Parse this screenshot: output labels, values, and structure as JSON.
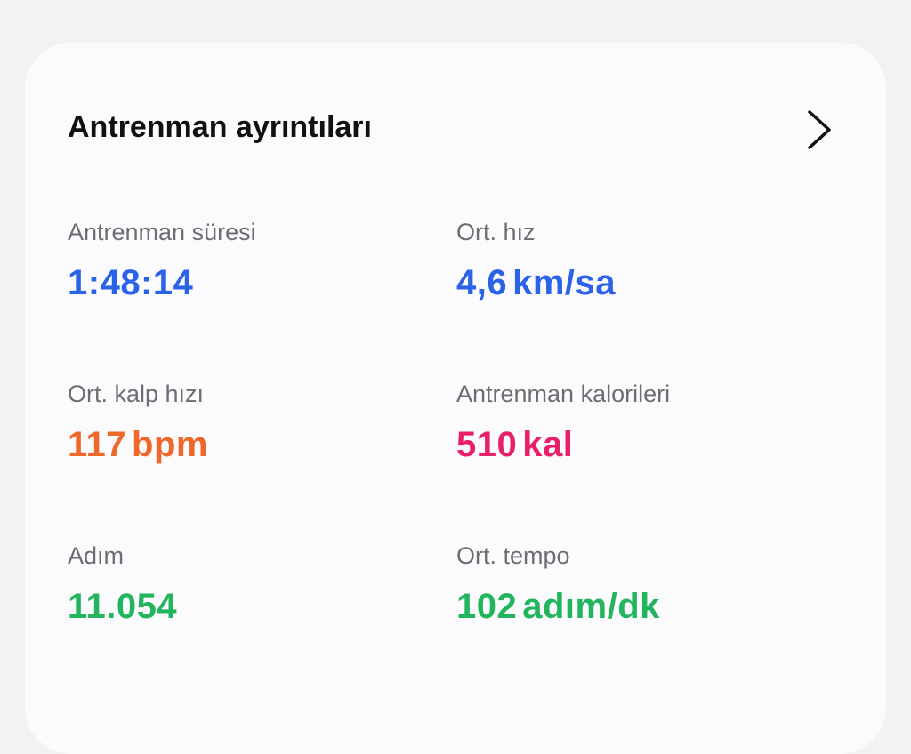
{
  "header": {
    "title": "Antrenman ayrıntıları",
    "chevron_icon": "chevron-right-icon"
  },
  "metrics": [
    {
      "label": "Antrenman süresi",
      "value": "1:48:14",
      "unit": "",
      "color": "#2a62e8"
    },
    {
      "label": "Ort. hız",
      "value": "4,6",
      "unit": "km/sa",
      "color": "#2a62e8"
    },
    {
      "label": "Ort. kalp hızı",
      "value": "117",
      "unit": "bpm",
      "color": "#f0672a"
    },
    {
      "label": "Antrenman kalorileri",
      "value": "510",
      "unit": "kal",
      "color": "#e8206a"
    },
    {
      "label": "Adım",
      "value": "11.054",
      "unit": "",
      "color": "#22b55e"
    },
    {
      "label": "Ort. tempo",
      "value": "102",
      "unit": "adım/dk",
      "color": "#22b55e"
    }
  ]
}
